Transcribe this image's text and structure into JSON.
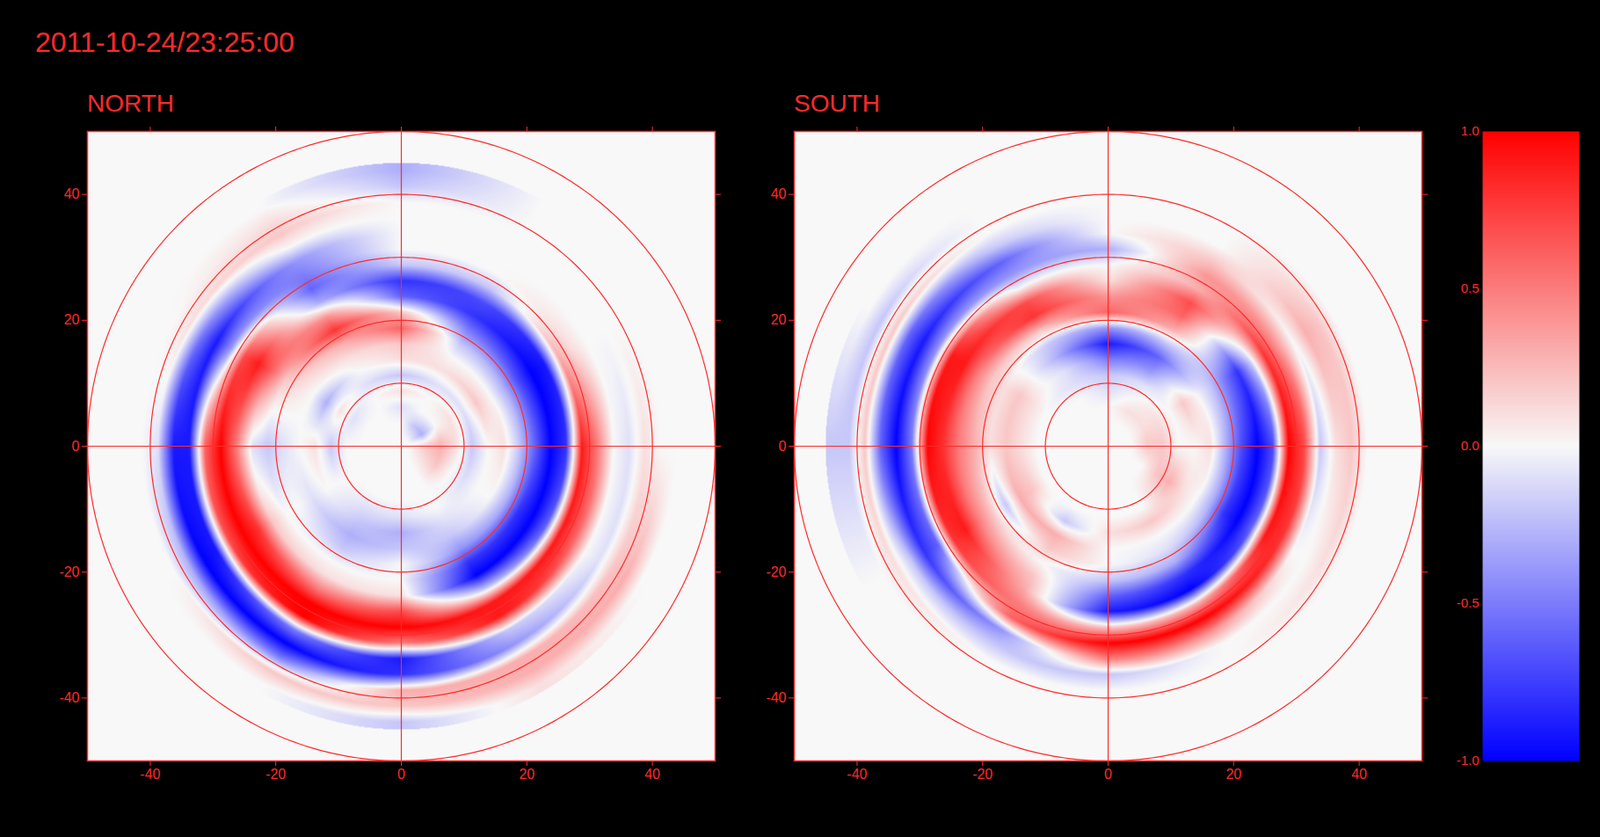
{
  "chart_data": {
    "type": "polar_heatmap",
    "title": "2011-10-24/23:25:00",
    "color_range": [
      -1,
      1
    ],
    "color_ticks": [
      {
        "value": 1,
        "label": "1.0"
      },
      {
        "value": 0.5,
        "label": "0.5"
      },
      {
        "value": 0,
        "label": "0.0"
      },
      {
        "value": -0.5,
        "label": "-0.5"
      },
      {
        "value": -1,
        "label": "-1.0"
      }
    ],
    "panels": [
      {
        "title": "NORTH",
        "xlim": [
          -50,
          50
        ],
        "ylim": [
          -50,
          50
        ],
        "xticks": [
          -40,
          -20,
          0,
          20,
          40
        ],
        "yticks": [
          -40,
          -20,
          0,
          20,
          40
        ],
        "center": [
          0,
          0
        ],
        "circles": [
          10,
          20,
          30,
          40,
          50
        ],
        "radii": [
          1.25,
          3.75,
          6.25,
          8.75,
          11.25,
          13.75,
          16.25,
          18.75,
          21.25,
          23.75,
          26.25,
          28.75,
          31.25,
          33.75,
          36.25,
          38.75,
          41.25,
          43.75
        ],
        "angles": [
          0,
          30,
          60,
          90,
          120,
          150,
          180,
          210,
          240,
          270,
          300,
          330
        ],
        "cells": [
          [
            0,
            0.2,
            0.3,
            0.1,
            -0.2,
            0,
            0.1,
            -0.2,
            -0.6,
            -1,
            -0.8,
            0.9,
            0.5,
            0,
            -0.1,
            0.1,
            0,
            0
          ],
          [
            0,
            -0.3,
            0,
            0.1,
            -0.1,
            0.2,
            0,
            -0.3,
            -0.7,
            -1,
            -0.9,
            0.3,
            0.1,
            0,
            0,
            0,
            0,
            0
          ],
          [
            0,
            -0.2,
            0,
            0,
            -0.1,
            0.1,
            0,
            -0.2,
            -0.5,
            -0.8,
            -0.7,
            -0.2,
            0,
            0,
            0,
            0,
            0,
            0
          ],
          [
            0,
            0,
            -0.1,
            0.1,
            -0.2,
            0.1,
            0.2,
            0.6,
            0.2,
            -0.6,
            -0.8,
            -0.2,
            0,
            0,
            0,
            0,
            -0.2,
            -0.3
          ],
          [
            0,
            0,
            0,
            0,
            -0.1,
            0,
            0.1,
            0.3,
            0.8,
            0.4,
            -0.3,
            -0.6,
            -0.5,
            -0.4,
            0,
            0.2,
            0.1,
            0
          ],
          [
            0,
            0,
            0,
            -0.1,
            0.1,
            -0.3,
            0,
            0.1,
            0.2,
            0.6,
            0.9,
            0.7,
            -0.4,
            -0.9,
            -0.5,
            0.1,
            0,
            0
          ],
          [
            0,
            0,
            0,
            0,
            -0.2,
            0.1,
            0,
            -0.1,
            -0.2,
            -0.1,
            0.5,
            1,
            0.6,
            -0.9,
            -0.9,
            -0.1,
            0,
            0
          ],
          [
            0,
            0,
            0,
            0,
            0,
            0,
            -0.1,
            0,
            0,
            0.2,
            0.8,
            1,
            0.7,
            -0.9,
            -1,
            -0.3,
            0,
            0
          ],
          [
            0,
            0,
            0,
            0,
            -0.1,
            -0.2,
            -0.3,
            -0.2,
            0,
            0.1,
            0.5,
            1,
            1,
            -0.5,
            -1,
            -0.5,
            0.2,
            0
          ],
          [
            0,
            0,
            0,
            0,
            -0.1,
            -0.3,
            -0.2,
            0,
            0,
            0.1,
            0.7,
            1,
            0.5,
            -0.9,
            -0.8,
            0.3,
            0.2,
            -0.2
          ],
          [
            0,
            0,
            0,
            0,
            0,
            -0.1,
            -0.2,
            -0.4,
            -0.8,
            -1,
            -0.2,
            0.9,
            0.9,
            -0.2,
            -0.4,
            0.3,
            0.3,
            0.1
          ],
          [
            0,
            0.1,
            0.2,
            0,
            -0.1,
            0,
            0,
            -0.3,
            -0.8,
            -1,
            -0.6,
            0.9,
            0.6,
            0,
            -0.1,
            0.2,
            0.3,
            0
          ]
        ]
      },
      {
        "title": "SOUTH",
        "xlim": [
          -50,
          50
        ],
        "ylim": [
          -50,
          50
        ],
        "xticks": [
          -40,
          -20,
          0,
          20,
          40
        ],
        "yticks": [
          -40,
          -20,
          0,
          20,
          40
        ],
        "center": [
          0,
          0
        ],
        "circles": [
          10,
          20,
          30,
          40,
          50
        ],
        "radii": [
          1.25,
          3.75,
          6.25,
          8.75,
          11.25,
          13.75,
          16.25,
          18.75,
          21.25,
          23.75,
          26.25,
          28.75,
          31.25,
          33.75,
          36.25,
          38.75,
          41.25,
          43.75
        ],
        "angles": [
          0,
          30,
          60,
          90,
          120,
          150,
          180,
          210,
          240,
          270,
          300,
          330
        ],
        "cells": [
          [
            0,
            0,
            0.2,
            0.2,
            0,
            0,
            0.1,
            -0.3,
            -0.7,
            -1,
            -0.7,
            1,
            0.7,
            -0.2,
            0.1,
            0.2,
            0,
            0
          ],
          [
            0,
            0,
            0.1,
            0.1,
            0,
            0.2,
            0,
            -0.2,
            -0.5,
            -0.8,
            -0.2,
            0.8,
            0.4,
            0,
            0.3,
            0.2,
            0,
            0
          ],
          [
            0,
            0,
            0.1,
            0,
            -0.1,
            -0.4,
            -0.6,
            -0.2,
            0.3,
            0.6,
            0.7,
            0.3,
            0.4,
            0.2,
            0,
            0,
            0,
            0
          ],
          [
            0,
            0,
            0,
            -0.1,
            -0.2,
            -0.5,
            -0.9,
            -0.4,
            0.6,
            0.4,
            0.1,
            0,
            -0.3,
            0,
            0,
            0,
            0,
            0
          ],
          [
            0,
            0,
            0,
            0,
            -0.1,
            -0.1,
            -0.3,
            -0.2,
            0.2,
            0.8,
            0.7,
            0,
            -0.4,
            -0.6,
            -0.2,
            0,
            0,
            0
          ],
          [
            0,
            0,
            0,
            0,
            0,
            0.1,
            0.2,
            0.1,
            0.2,
            0.5,
            0.9,
            0.9,
            -0.4,
            -0.9,
            -0.6,
            0.2,
            -0.2,
            0
          ],
          [
            0,
            0,
            0,
            0,
            0,
            0.1,
            0.2,
            0.1,
            0.3,
            0.5,
            0.8,
            1,
            -0.5,
            -1,
            -0.6,
            0.2,
            -0.2,
            -0.2
          ],
          [
            0,
            0,
            0,
            0,
            0,
            0.2,
            0.3,
            -0.2,
            0.2,
            0.5,
            0.9,
            0.8,
            -0.6,
            -0.8,
            -0.2,
            0.1,
            0,
            0
          ],
          [
            0,
            0,
            0,
            0,
            0,
            -0.2,
            0.3,
            0.2,
            0,
            0.2,
            0.3,
            0.5,
            0.6,
            -0.4,
            -0.2,
            0,
            0,
            0
          ],
          [
            0,
            0,
            0,
            0,
            0,
            0.1,
            0,
            0,
            -0.2,
            -0.6,
            -0.9,
            0.2,
            1,
            0.5,
            -0.2,
            0,
            0,
            0
          ],
          [
            0,
            0,
            0,
            0,
            0,
            0.2,
            0,
            -0.1,
            -0.3,
            -0.8,
            -1,
            0.3,
            1,
            0.4,
            0,
            0,
            0,
            0
          ],
          [
            0,
            0,
            0,
            0.2,
            0.3,
            0.1,
            0,
            -0.3,
            -0.8,
            -1,
            -0.6,
            0.9,
            0.8,
            0,
            0,
            0.1,
            0,
            0
          ]
        ]
      }
    ]
  }
}
